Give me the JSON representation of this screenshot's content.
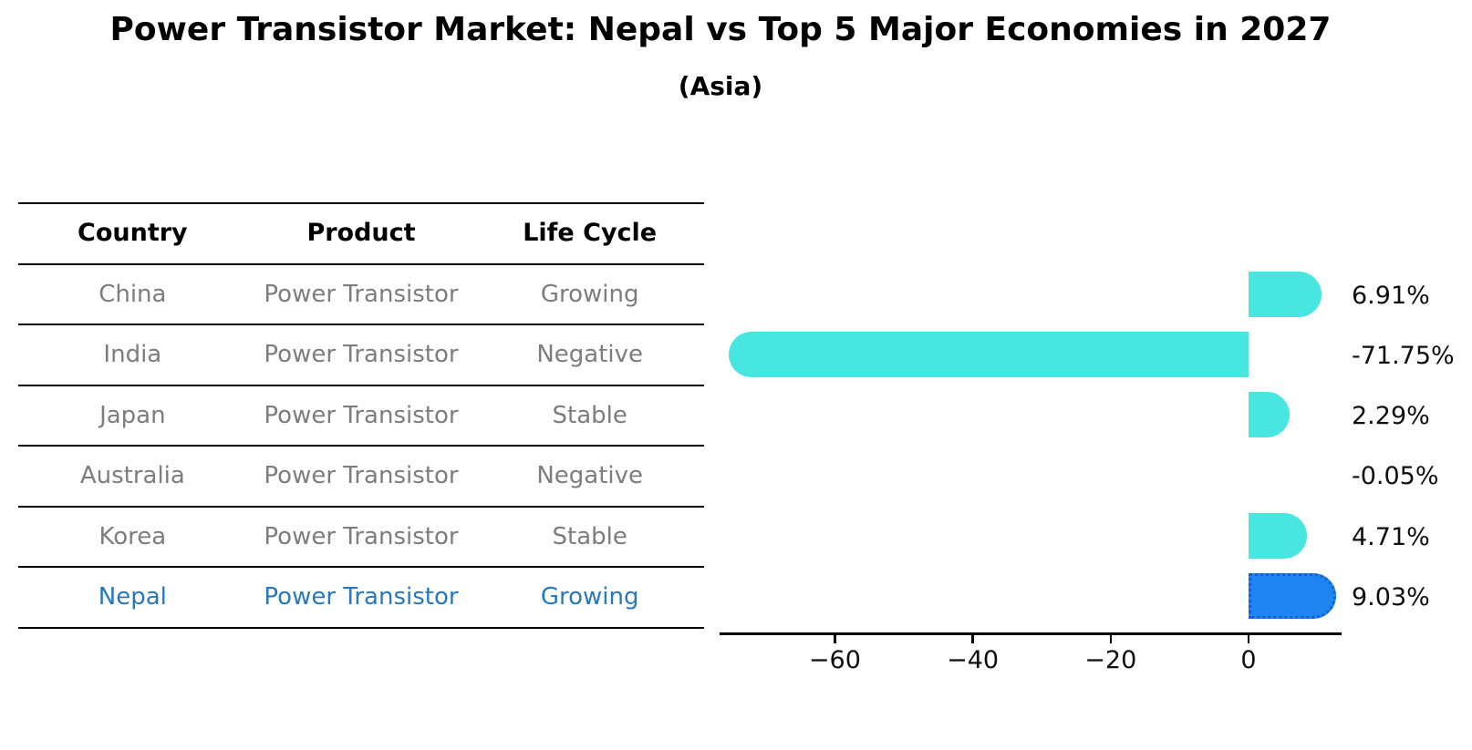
{
  "header": {
    "title": "Power Transistor Market: Nepal vs Top 5 Major Economies in 2027",
    "subtitle": "(Asia)"
  },
  "table": {
    "columns": [
      "Country",
      "Product",
      "Life Cycle"
    ],
    "text_color": "#7d7d7d",
    "highlight_text_color": "#2878C0",
    "rows": [
      {
        "country": "China",
        "product": "Power Transistor",
        "life_cycle": "Growing",
        "highlight": false
      },
      {
        "country": "India",
        "product": "Power Transistor",
        "life_cycle": "Negative",
        "highlight": false
      },
      {
        "country": "Japan",
        "product": "Power Transistor",
        "life_cycle": "Stable",
        "highlight": false
      },
      {
        "country": "Australia",
        "product": "Power Transistor",
        "life_cycle": "Negative",
        "highlight": false
      },
      {
        "country": "Korea",
        "product": "Power Transistor",
        "life_cycle": "Stable",
        "highlight": false
      },
      {
        "country": "Nepal",
        "product": "Power Transistor",
        "life_cycle": "Growing",
        "highlight": true
      }
    ]
  },
  "chart_data": {
    "type": "bar",
    "orientation": "horizontal",
    "title": "Power Transistor Market: Nepal vs Top 5 Major Economies in 2027 (Asia)",
    "categories": [
      "China",
      "India",
      "Japan",
      "Australia",
      "Korea",
      "Nepal"
    ],
    "values": [
      6.91,
      -71.75,
      2.29,
      -0.05,
      4.71,
      9.03
    ],
    "labels": [
      "6.91%",
      "-71.75%",
      "2.29%",
      "-0.05%",
      "4.71%",
      "9.03%"
    ],
    "unit": "%",
    "x_ticks": [
      "−60",
      "−40",
      "−20",
      "0"
    ],
    "x_tick_values": [
      -60,
      -40,
      -20,
      0
    ],
    "xlim": [
      -76.6,
      13.4
    ],
    "grid": false,
    "legend": "none",
    "bar_color": "#47E6E0",
    "highlight_color": "#1E84F0",
    "highlight_border_color": "#1161D6",
    "highlight_index": 5
  }
}
